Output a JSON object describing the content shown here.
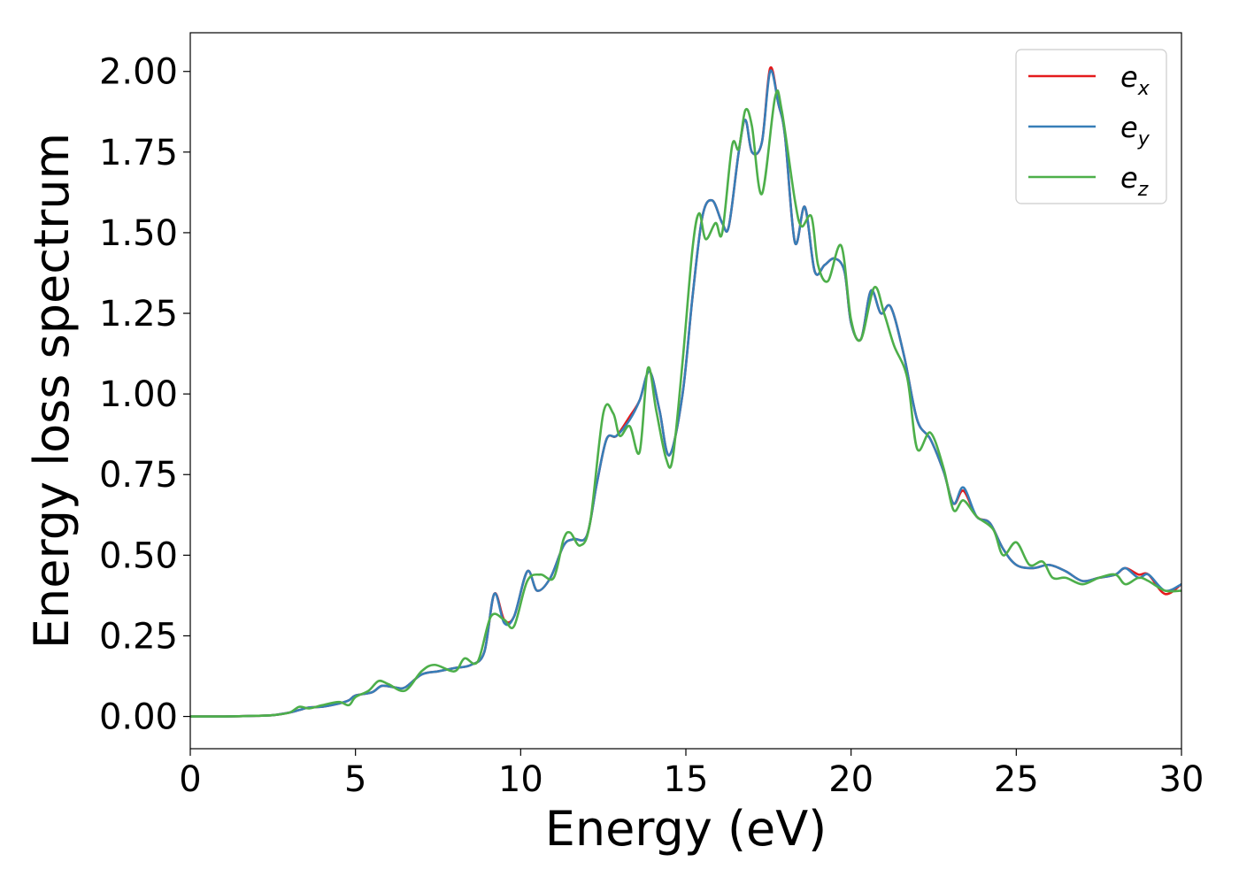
{
  "chart_data": {
    "type": "line",
    "xlabel": "Energy (eV)",
    "ylabel": "Energy loss spectrum",
    "xlim": [
      0,
      30
    ],
    "ylim": [
      -0.1,
      2.12
    ],
    "xticks": [
      "0",
      "5",
      "10",
      "15",
      "20",
      "25",
      "30"
    ],
    "yticks": [
      "0.00",
      "0.25",
      "0.50",
      "0.75",
      "1.00",
      "1.25",
      "1.50",
      "1.75",
      "2.00"
    ],
    "grid": false,
    "legend_position": "top-right",
    "series": [
      {
        "name": "e_x",
        "legend_base": "e",
        "legend_sub": "x",
        "color": "#e41a1c",
        "points": [
          [
            0,
            0.0
          ],
          [
            1,
            0.0
          ],
          [
            2,
            0.002
          ],
          [
            2.5,
            0.004
          ],
          [
            3.0,
            0.012
          ],
          [
            3.3,
            0.02
          ],
          [
            3.6,
            0.028
          ],
          [
            4.0,
            0.03
          ],
          [
            4.5,
            0.04
          ],
          [
            4.8,
            0.05
          ],
          [
            5.0,
            0.065
          ],
          [
            5.5,
            0.075
          ],
          [
            5.8,
            0.095
          ],
          [
            6.2,
            0.09
          ],
          [
            6.5,
            0.09
          ],
          [
            7.0,
            0.13
          ],
          [
            7.5,
            0.14
          ],
          [
            8.0,
            0.15
          ],
          [
            8.5,
            0.16
          ],
          [
            8.9,
            0.2
          ],
          [
            9.2,
            0.38
          ],
          [
            9.5,
            0.3
          ],
          [
            9.8,
            0.31
          ],
          [
            10.2,
            0.45
          ],
          [
            10.5,
            0.39
          ],
          [
            10.9,
            0.43
          ],
          [
            11.3,
            0.53
          ],
          [
            11.6,
            0.55
          ],
          [
            12.0,
            0.56
          ],
          [
            12.3,
            0.72
          ],
          [
            12.6,
            0.86
          ],
          [
            12.9,
            0.87
          ],
          [
            13.3,
            0.93
          ],
          [
            13.6,
            0.98
          ],
          [
            13.9,
            1.07
          ],
          [
            14.2,
            0.95
          ],
          [
            14.5,
            0.81
          ],
          [
            14.9,
            1.0
          ],
          [
            15.2,
            1.3
          ],
          [
            15.5,
            1.55
          ],
          [
            15.8,
            1.6
          ],
          [
            16.1,
            1.53
          ],
          [
            16.3,
            1.52
          ],
          [
            16.6,
            1.75
          ],
          [
            16.8,
            1.85
          ],
          [
            17.0,
            1.75
          ],
          [
            17.3,
            1.78
          ],
          [
            17.55,
            2.01
          ],
          [
            17.8,
            1.9
          ],
          [
            18.0,
            1.8
          ],
          [
            18.3,
            1.47
          ],
          [
            18.6,
            1.58
          ],
          [
            18.9,
            1.38
          ],
          [
            19.2,
            1.4
          ],
          [
            19.5,
            1.42
          ],
          [
            19.8,
            1.38
          ],
          [
            20.0,
            1.22
          ],
          [
            20.3,
            1.17
          ],
          [
            20.6,
            1.32
          ],
          [
            20.9,
            1.25
          ],
          [
            21.2,
            1.27
          ],
          [
            21.6,
            1.12
          ],
          [
            22.0,
            0.92
          ],
          [
            22.4,
            0.86
          ],
          [
            22.8,
            0.76
          ],
          [
            23.1,
            0.66
          ],
          [
            23.4,
            0.7
          ],
          [
            23.8,
            0.62
          ],
          [
            24.2,
            0.6
          ],
          [
            24.6,
            0.52
          ],
          [
            25.0,
            0.47
          ],
          [
            25.5,
            0.46
          ],
          [
            26.0,
            0.47
          ],
          [
            26.5,
            0.45
          ],
          [
            27.0,
            0.42
          ],
          [
            27.5,
            0.43
          ],
          [
            28.0,
            0.44
          ],
          [
            28.3,
            0.46
          ],
          [
            28.7,
            0.44
          ],
          [
            29.0,
            0.44
          ],
          [
            29.5,
            0.38
          ],
          [
            30.0,
            0.41
          ]
        ]
      },
      {
        "name": "e_y",
        "legend_base": "e",
        "legend_sub": "y",
        "color": "#377eb8",
        "points": [
          [
            0,
            0.0
          ],
          [
            1,
            0.0
          ],
          [
            2,
            0.002
          ],
          [
            2.5,
            0.004
          ],
          [
            3.0,
            0.012
          ],
          [
            3.3,
            0.02
          ],
          [
            3.6,
            0.028
          ],
          [
            4.0,
            0.03
          ],
          [
            4.5,
            0.04
          ],
          [
            4.8,
            0.05
          ],
          [
            5.0,
            0.065
          ],
          [
            5.5,
            0.075
          ],
          [
            5.8,
            0.095
          ],
          [
            6.2,
            0.09
          ],
          [
            6.5,
            0.09
          ],
          [
            7.0,
            0.13
          ],
          [
            7.5,
            0.14
          ],
          [
            8.0,
            0.15
          ],
          [
            8.5,
            0.16
          ],
          [
            8.9,
            0.2
          ],
          [
            9.2,
            0.38
          ],
          [
            9.5,
            0.29
          ],
          [
            9.8,
            0.31
          ],
          [
            10.2,
            0.45
          ],
          [
            10.5,
            0.39
          ],
          [
            10.9,
            0.43
          ],
          [
            11.3,
            0.53
          ],
          [
            11.6,
            0.55
          ],
          [
            12.0,
            0.56
          ],
          [
            12.3,
            0.72
          ],
          [
            12.6,
            0.86
          ],
          [
            12.9,
            0.87
          ],
          [
            13.3,
            0.92
          ],
          [
            13.6,
            0.98
          ],
          [
            13.9,
            1.07
          ],
          [
            14.2,
            0.95
          ],
          [
            14.5,
            0.81
          ],
          [
            14.9,
            1.0
          ],
          [
            15.2,
            1.3
          ],
          [
            15.5,
            1.55
          ],
          [
            15.8,
            1.6
          ],
          [
            16.1,
            1.53
          ],
          [
            16.3,
            1.52
          ],
          [
            16.6,
            1.75
          ],
          [
            16.8,
            1.85
          ],
          [
            17.0,
            1.75
          ],
          [
            17.3,
            1.78
          ],
          [
            17.55,
            2.0
          ],
          [
            17.8,
            1.9
          ],
          [
            18.0,
            1.8
          ],
          [
            18.3,
            1.47
          ],
          [
            18.6,
            1.58
          ],
          [
            18.9,
            1.38
          ],
          [
            19.2,
            1.4
          ],
          [
            19.5,
            1.42
          ],
          [
            19.8,
            1.38
          ],
          [
            20.0,
            1.22
          ],
          [
            20.3,
            1.17
          ],
          [
            20.6,
            1.32
          ],
          [
            20.9,
            1.25
          ],
          [
            21.2,
            1.27
          ],
          [
            21.6,
            1.12
          ],
          [
            22.0,
            0.92
          ],
          [
            22.4,
            0.86
          ],
          [
            22.8,
            0.76
          ],
          [
            23.1,
            0.66
          ],
          [
            23.4,
            0.71
          ],
          [
            23.8,
            0.62
          ],
          [
            24.2,
            0.6
          ],
          [
            24.6,
            0.52
          ],
          [
            25.0,
            0.47
          ],
          [
            25.5,
            0.46
          ],
          [
            26.0,
            0.47
          ],
          [
            26.5,
            0.45
          ],
          [
            27.0,
            0.42
          ],
          [
            27.5,
            0.43
          ],
          [
            28.0,
            0.44
          ],
          [
            28.3,
            0.46
          ],
          [
            28.7,
            0.43
          ],
          [
            29.0,
            0.44
          ],
          [
            29.5,
            0.39
          ],
          [
            30.0,
            0.41
          ]
        ]
      },
      {
        "name": "e_z",
        "legend_base": "e",
        "legend_sub": "z",
        "color": "#4daf4a",
        "points": [
          [
            0,
            0.0
          ],
          [
            1,
            0.0
          ],
          [
            2,
            0.002
          ],
          [
            2.5,
            0.004
          ],
          [
            3.0,
            0.012
          ],
          [
            3.3,
            0.03
          ],
          [
            3.6,
            0.025
          ],
          [
            4.0,
            0.035
          ],
          [
            4.5,
            0.045
          ],
          [
            4.8,
            0.035
          ],
          [
            5.0,
            0.06
          ],
          [
            5.4,
            0.08
          ],
          [
            5.7,
            0.11
          ],
          [
            6.0,
            0.1
          ],
          [
            6.5,
            0.08
          ],
          [
            7.0,
            0.14
          ],
          [
            7.4,
            0.16
          ],
          [
            8.0,
            0.14
          ],
          [
            8.3,
            0.18
          ],
          [
            8.7,
            0.17
          ],
          [
            9.1,
            0.31
          ],
          [
            9.5,
            0.3
          ],
          [
            9.8,
            0.28
          ],
          [
            10.2,
            0.42
          ],
          [
            10.6,
            0.44
          ],
          [
            11.0,
            0.43
          ],
          [
            11.3,
            0.55
          ],
          [
            11.5,
            0.57
          ],
          [
            11.8,
            0.53
          ],
          [
            12.1,
            0.6
          ],
          [
            12.5,
            0.94
          ],
          [
            12.8,
            0.94
          ],
          [
            13.0,
            0.87
          ],
          [
            13.3,
            0.9
          ],
          [
            13.6,
            0.82
          ],
          [
            13.85,
            1.08
          ],
          [
            14.1,
            0.95
          ],
          [
            14.4,
            0.8
          ],
          [
            14.6,
            0.8
          ],
          [
            14.9,
            1.1
          ],
          [
            15.2,
            1.45
          ],
          [
            15.4,
            1.56
          ],
          [
            15.6,
            1.48
          ],
          [
            15.9,
            1.53
          ],
          [
            16.1,
            1.5
          ],
          [
            16.4,
            1.77
          ],
          [
            16.6,
            1.76
          ],
          [
            16.8,
            1.88
          ],
          [
            17.0,
            1.83
          ],
          [
            17.3,
            1.62
          ],
          [
            17.7,
            1.92
          ],
          [
            17.9,
            1.88
          ],
          [
            18.3,
            1.6
          ],
          [
            18.5,
            1.52
          ],
          [
            18.8,
            1.55
          ],
          [
            19.0,
            1.4
          ],
          [
            19.3,
            1.35
          ],
          [
            19.7,
            1.46
          ],
          [
            20.0,
            1.23
          ],
          [
            20.3,
            1.17
          ],
          [
            20.7,
            1.33
          ],
          [
            21.0,
            1.25
          ],
          [
            21.3,
            1.15
          ],
          [
            21.7,
            1.05
          ],
          [
            22.0,
            0.83
          ],
          [
            22.4,
            0.88
          ],
          [
            22.8,
            0.77
          ],
          [
            23.1,
            0.64
          ],
          [
            23.4,
            0.67
          ],
          [
            23.8,
            0.62
          ],
          [
            24.3,
            0.58
          ],
          [
            24.6,
            0.5
          ],
          [
            25.0,
            0.54
          ],
          [
            25.4,
            0.47
          ],
          [
            25.8,
            0.48
          ],
          [
            26.1,
            0.43
          ],
          [
            26.5,
            0.43
          ],
          [
            27.0,
            0.41
          ],
          [
            27.5,
            0.43
          ],
          [
            28.0,
            0.44
          ],
          [
            28.3,
            0.41
          ],
          [
            28.7,
            0.43
          ],
          [
            29.0,
            0.42
          ],
          [
            29.5,
            0.39
          ],
          [
            30.0,
            0.39
          ]
        ]
      }
    ]
  }
}
